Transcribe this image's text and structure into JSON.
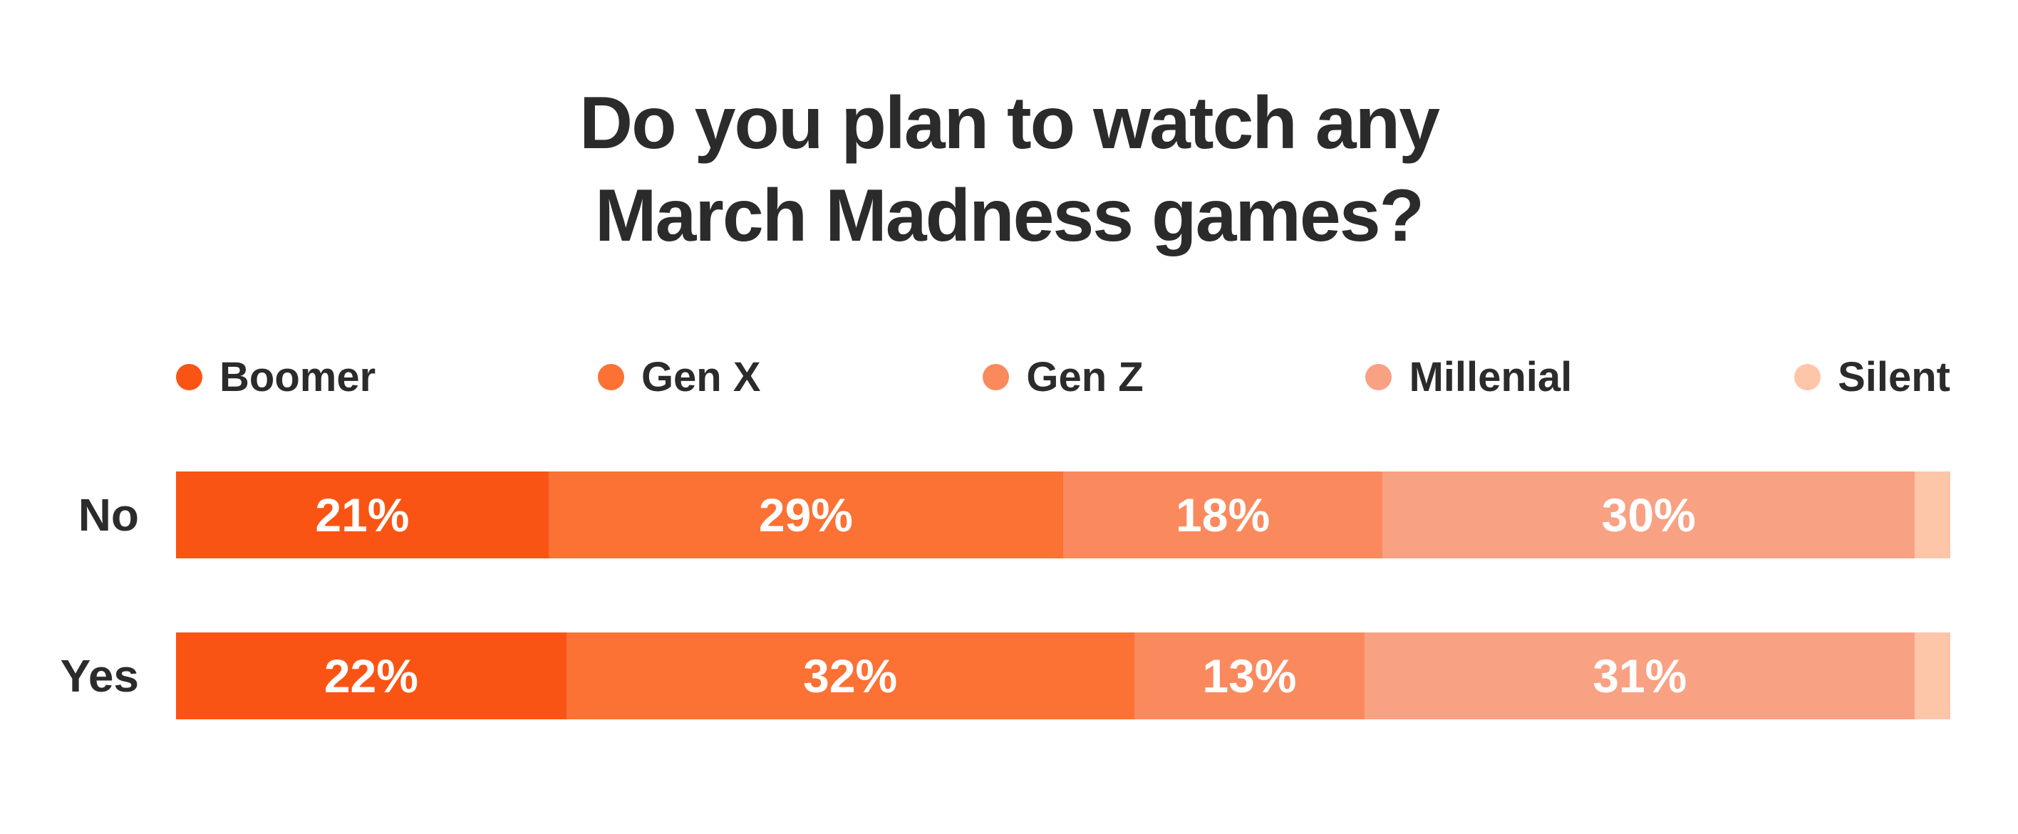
{
  "title": {
    "line1": "Do you plan to watch any",
    "line2": "March Madness games?"
  },
  "colors": {
    "background": "#FFFFFF",
    "text_dark": "#2B2B2B",
    "data_label_text": "#FFFFFF"
  },
  "chart_data": {
    "type": "bar",
    "variant": "horizontal-stacked-100-percent",
    "title": "Do you plan to watch any March Madness games?",
    "categories": [
      "No",
      "Yes"
    ],
    "series": [
      {
        "name": "Boomer",
        "color": "#FA5414",
        "values": [
          21,
          22
        ],
        "labels": [
          "21%",
          "22%"
        ]
      },
      {
        "name": "Gen X",
        "color": "#FC7134",
        "values": [
          29,
          32
        ],
        "labels": [
          "29%",
          "32%"
        ]
      },
      {
        "name": "Gen Z",
        "color": "#FA8A5E",
        "values": [
          18,
          13
        ],
        "labels": [
          "18%",
          "13%"
        ]
      },
      {
        "name": "Millenial",
        "color": "#F9A183",
        "values": [
          30,
          31
        ],
        "labels": [
          "30%",
          "31%"
        ]
      },
      {
        "name": "Silent",
        "color": "#FDC6A8",
        "values": [
          2,
          2
        ],
        "labels": [
          "",
          ""
        ],
        "value_estimated_from_width": true
      }
    ],
    "xlim": [
      0,
      100
    ],
    "legend_position": "top",
    "grid": false,
    "data_labels_inside": true
  }
}
